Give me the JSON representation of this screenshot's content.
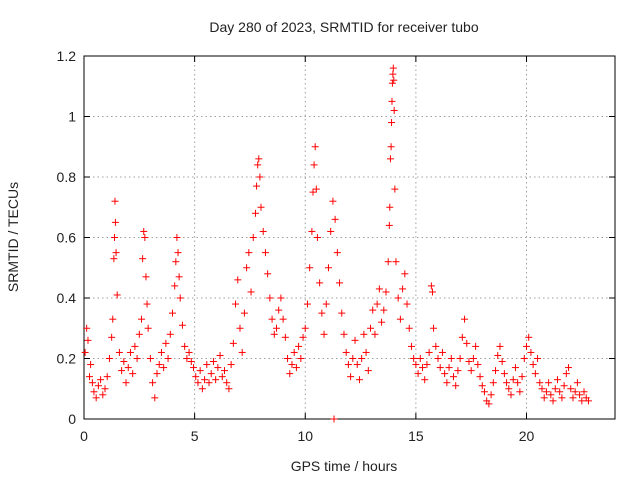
{
  "chart_data": {
    "type": "scatter",
    "title": "Day 280 of 2023, SRMTID for receiver tubo",
    "xlabel": "GPS time / hours",
    "ylabel": "SRMTID / TECUs",
    "xlim": [
      0,
      24
    ],
    "ylim": [
      0,
      1.2
    ],
    "grid": true,
    "marker": "+",
    "color": "#ff0000",
    "x_ticks": [
      {
        "value": 0,
        "label": "0"
      },
      {
        "value": 5,
        "label": "5"
      },
      {
        "value": 10,
        "label": "10"
      },
      {
        "value": 15,
        "label": "15"
      },
      {
        "value": 20,
        "label": "20"
      }
    ],
    "y_ticks": [
      {
        "value": 0,
        "label": "0"
      },
      {
        "value": 0.2,
        "label": "0.2"
      },
      {
        "value": 0.4,
        "label": "0.4"
      },
      {
        "value": 0.6,
        "label": "0.6"
      },
      {
        "value": 0.8,
        "label": "0.8"
      },
      {
        "value": 1.0,
        "label": "1"
      },
      {
        "value": 1.2,
        "label": "1.2"
      }
    ],
    "series": [
      {
        "name": "SRMTID",
        "points": [
          [
            0.05,
            0.22
          ],
          [
            0.12,
            0.3
          ],
          [
            0.18,
            0.26
          ],
          [
            0.25,
            0.14
          ],
          [
            0.3,
            0.18
          ],
          [
            0.38,
            0.12
          ],
          [
            0.45,
            0.09
          ],
          [
            0.55,
            0.07
          ],
          [
            0.65,
            0.11
          ],
          [
            0.75,
            0.13
          ],
          [
            0.85,
            0.08
          ],
          [
            0.95,
            0.1
          ],
          [
            1.05,
            0.14
          ],
          [
            1.15,
            0.2
          ],
          [
            1.25,
            0.27
          ],
          [
            1.3,
            0.33
          ],
          [
            1.35,
            0.53
          ],
          [
            1.38,
            0.6
          ],
          [
            1.4,
            0.72
          ],
          [
            1.42,
            0.65
          ],
          [
            1.45,
            0.55
          ],
          [
            1.5,
            0.41
          ],
          [
            1.6,
            0.22
          ],
          [
            1.7,
            0.16
          ],
          [
            1.8,
            0.19
          ],
          [
            1.9,
            0.12
          ],
          [
            2.0,
            0.17
          ],
          [
            2.1,
            0.22
          ],
          [
            2.2,
            0.15
          ],
          [
            2.3,
            0.24
          ],
          [
            2.4,
            0.2
          ],
          [
            2.5,
            0.28
          ],
          [
            2.6,
            0.33
          ],
          [
            2.65,
            0.53
          ],
          [
            2.7,
            0.62
          ],
          [
            2.75,
            0.6
          ],
          [
            2.8,
            0.47
          ],
          [
            2.85,
            0.38
          ],
          [
            2.9,
            0.3
          ],
          [
            3.0,
            0.2
          ],
          [
            3.1,
            0.12
          ],
          [
            3.2,
            0.07
          ],
          [
            3.3,
            0.15
          ],
          [
            3.4,
            0.18
          ],
          [
            3.5,
            0.22
          ],
          [
            3.6,
            0.17
          ],
          [
            3.7,
            0.25
          ],
          [
            3.8,
            0.2
          ],
          [
            3.9,
            0.28
          ],
          [
            4.0,
            0.35
          ],
          [
            4.1,
            0.44
          ],
          [
            4.15,
            0.52
          ],
          [
            4.2,
            0.6
          ],
          [
            4.25,
            0.55
          ],
          [
            4.3,
            0.47
          ],
          [
            4.35,
            0.4
          ],
          [
            4.45,
            0.31
          ],
          [
            4.55,
            0.24
          ],
          [
            4.65,
            0.2
          ],
          [
            4.75,
            0.22
          ],
          [
            4.85,
            0.19
          ],
          [
            4.95,
            0.17
          ],
          [
            5.05,
            0.14
          ],
          [
            5.15,
            0.12
          ],
          [
            5.25,
            0.16
          ],
          [
            5.35,
            0.1
          ],
          [
            5.45,
            0.13
          ],
          [
            5.55,
            0.18
          ],
          [
            5.65,
            0.12
          ],
          [
            5.75,
            0.15
          ],
          [
            5.85,
            0.19
          ],
          [
            5.95,
            0.13
          ],
          [
            6.05,
            0.17
          ],
          [
            6.15,
            0.21
          ],
          [
            6.25,
            0.14
          ],
          [
            6.35,
            0.16
          ],
          [
            6.45,
            0.12
          ],
          [
            6.55,
            0.1
          ],
          [
            6.65,
            0.18
          ],
          [
            6.75,
            0.25
          ],
          [
            6.85,
            0.38
          ],
          [
            6.95,
            0.46
          ],
          [
            7.05,
            0.3
          ],
          [
            7.15,
            0.22
          ],
          [
            7.25,
            0.35
          ],
          [
            7.35,
            0.5
          ],
          [
            7.45,
            0.55
          ],
          [
            7.55,
            0.42
          ],
          [
            7.65,
            0.6
          ],
          [
            7.75,
            0.68
          ],
          [
            7.8,
            0.77
          ],
          [
            7.85,
            0.84
          ],
          [
            7.9,
            0.86
          ],
          [
            7.95,
            0.8
          ],
          [
            8.0,
            0.7
          ],
          [
            8.1,
            0.62
          ],
          [
            8.2,
            0.55
          ],
          [
            8.3,
            0.48
          ],
          [
            8.4,
            0.4
          ],
          [
            8.5,
            0.33
          ],
          [
            8.6,
            0.28
          ],
          [
            8.7,
            0.3
          ],
          [
            8.8,
            0.36
          ],
          [
            8.9,
            0.4
          ],
          [
            9.0,
            0.33
          ],
          [
            9.1,
            0.27
          ],
          [
            9.2,
            0.2
          ],
          [
            9.3,
            0.15
          ],
          [
            9.4,
            0.18
          ],
          [
            9.5,
            0.22
          ],
          [
            9.6,
            0.17
          ],
          [
            9.7,
            0.24
          ],
          [
            9.8,
            0.2
          ],
          [
            9.9,
            0.27
          ],
          [
            10.0,
            0.3
          ],
          [
            10.1,
            0.38
          ],
          [
            10.2,
            0.5
          ],
          [
            10.3,
            0.62
          ],
          [
            10.35,
            0.75
          ],
          [
            10.4,
            0.84
          ],
          [
            10.45,
            0.9
          ],
          [
            10.5,
            0.76
          ],
          [
            10.55,
            0.6
          ],
          [
            10.65,
            0.45
          ],
          [
            10.75,
            0.35
          ],
          [
            10.85,
            0.28
          ],
          [
            10.95,
            0.38
          ],
          [
            11.05,
            0.5
          ],
          [
            11.15,
            0.62
          ],
          [
            11.25,
            0.72
          ],
          [
            11.35,
            0.66
          ],
          [
            11.45,
            0.55
          ],
          [
            11.55,
            0.45
          ],
          [
            11.65,
            0.35
          ],
          [
            11.75,
            0.28
          ],
          [
            11.85,
            0.22
          ],
          [
            11.95,
            0.18
          ],
          [
            12.05,
            0.14
          ],
          [
            12.15,
            0.2
          ],
          [
            12.25,
            0.26
          ],
          [
            12.35,
            0.18
          ],
          [
            12.45,
            0.13
          ],
          [
            12.55,
            0.2
          ],
          [
            12.65,
            0.28
          ],
          [
            12.75,
            0.22
          ],
          [
            12.85,
            0.16
          ],
          [
            12.95,
            0.3
          ],
          [
            13.05,
            0.36
          ],
          [
            13.15,
            0.28
          ],
          [
            13.25,
            0.38
          ],
          [
            13.35,
            0.43
          ],
          [
            13.45,
            0.32
          ],
          [
            13.55,
            0.36
          ],
          [
            13.65,
            0.42
          ],
          [
            13.75,
            0.52
          ],
          [
            13.8,
            0.64
          ],
          [
            13.82,
            0.7
          ],
          [
            13.85,
            0.86
          ],
          [
            13.88,
            0.9
          ],
          [
            13.9,
            0.98
          ],
          [
            13.92,
            1.05
          ],
          [
            13.94,
            1.11
          ],
          [
            13.96,
            1.14
          ],
          [
            13.98,
            1.16
          ],
          [
            14.0,
            1.12
          ],
          [
            14.02,
            1.02
          ],
          [
            14.05,
            0.76
          ],
          [
            14.1,
            0.52
          ],
          [
            14.2,
            0.4
          ],
          [
            14.3,
            0.33
          ],
          [
            14.4,
            0.43
          ],
          [
            14.5,
            0.48
          ],
          [
            14.6,
            0.38
          ],
          [
            14.7,
            0.3
          ],
          [
            14.8,
            0.24
          ],
          [
            14.9,
            0.2
          ],
          [
            15.0,
            0.18
          ],
          [
            15.1,
            0.15
          ],
          [
            15.2,
            0.2
          ],
          [
            15.3,
            0.17
          ],
          [
            15.4,
            0.13
          ],
          [
            15.5,
            0.18
          ],
          [
            15.6,
            0.22
          ],
          [
            15.7,
            0.44
          ],
          [
            15.75,
            0.42
          ],
          [
            15.8,
            0.3
          ],
          [
            15.9,
            0.24
          ],
          [
            16.0,
            0.2
          ],
          [
            16.1,
            0.17
          ],
          [
            16.2,
            0.22
          ],
          [
            16.3,
            0.15
          ],
          [
            16.4,
            0.12
          ],
          [
            16.5,
            0.17
          ],
          [
            16.6,
            0.2
          ],
          [
            16.7,
            0.14
          ],
          [
            16.8,
            0.11
          ],
          [
            16.9,
            0.16
          ],
          [
            17.0,
            0.2
          ],
          [
            17.1,
            0.27
          ],
          [
            17.2,
            0.33
          ],
          [
            17.3,
            0.25
          ],
          [
            17.4,
            0.19
          ],
          [
            17.5,
            0.16
          ],
          [
            17.6,
            0.2
          ],
          [
            17.7,
            0.24
          ],
          [
            17.8,
            0.18
          ],
          [
            17.9,
            0.14
          ],
          [
            18.0,
            0.11
          ],
          [
            18.1,
            0.09
          ],
          [
            18.2,
            0.06
          ],
          [
            18.3,
            0.05
          ],
          [
            18.4,
            0.08
          ],
          [
            18.5,
            0.12
          ],
          [
            18.6,
            0.16
          ],
          [
            18.7,
            0.21
          ],
          [
            18.8,
            0.24
          ],
          [
            18.9,
            0.19
          ],
          [
            19.0,
            0.15
          ],
          [
            19.1,
            0.12
          ],
          [
            19.2,
            0.1
          ],
          [
            19.3,
            0.08
          ],
          [
            19.4,
            0.13
          ],
          [
            19.5,
            0.17
          ],
          [
            19.6,
            0.12
          ],
          [
            19.7,
            0.09
          ],
          [
            19.8,
            0.14
          ],
          [
            19.9,
            0.2
          ],
          [
            20.0,
            0.24
          ],
          [
            20.1,
            0.27
          ],
          [
            20.2,
            0.22
          ],
          [
            20.3,
            0.18
          ],
          [
            20.4,
            0.15
          ],
          [
            20.5,
            0.2
          ],
          [
            20.6,
            0.12
          ],
          [
            20.7,
            0.1
          ],
          [
            20.8,
            0.07
          ],
          [
            20.9,
            0.09
          ],
          [
            21.0,
            0.12
          ],
          [
            21.1,
            0.08
          ],
          [
            21.2,
            0.06
          ],
          [
            21.3,
            0.1
          ],
          [
            21.4,
            0.13
          ],
          [
            21.5,
            0.09
          ],
          [
            21.6,
            0.07
          ],
          [
            21.7,
            0.11
          ],
          [
            21.8,
            0.15
          ],
          [
            21.9,
            0.17
          ],
          [
            22.0,
            0.1
          ],
          [
            22.1,
            0.07
          ],
          [
            22.2,
            0.09
          ],
          [
            22.3,
            0.12
          ],
          [
            22.4,
            0.08
          ],
          [
            22.5,
            0.06
          ],
          [
            22.6,
            0.09
          ],
          [
            22.7,
            0.07
          ],
          [
            22.8,
            0.06
          ],
          [
            11.3,
            0.0
          ]
        ]
      }
    ]
  }
}
